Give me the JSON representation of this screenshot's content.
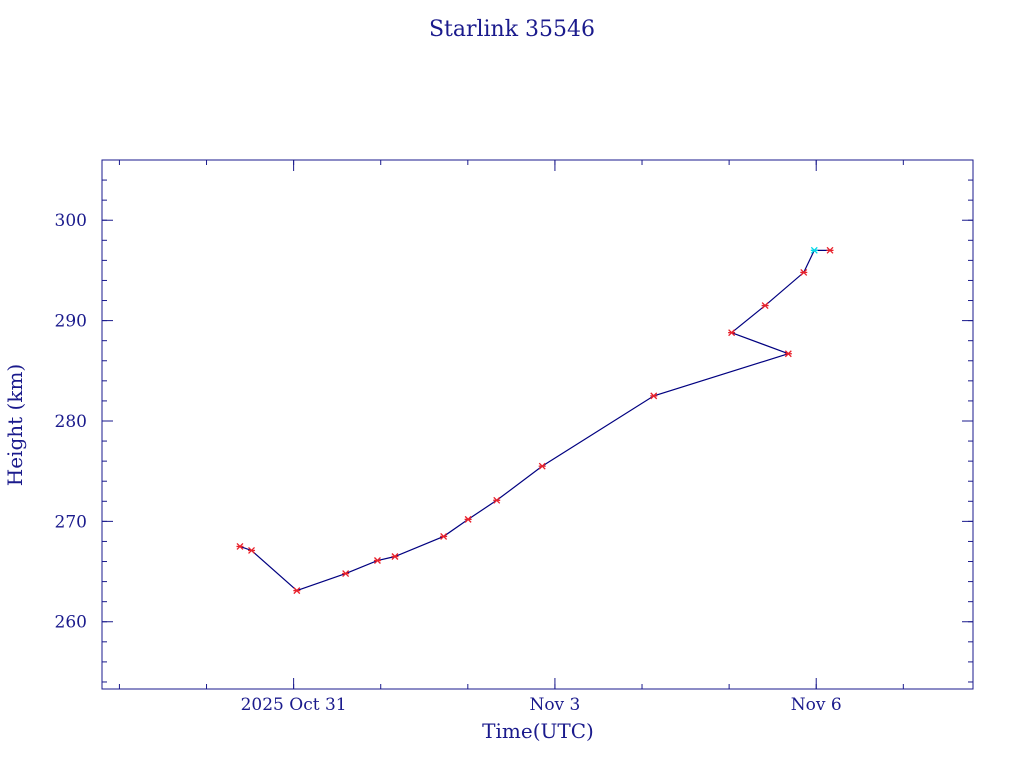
{
  "chart_data": {
    "type": "line",
    "title": "Starlink 35546",
    "xlabel": "Time(UTC)",
    "ylabel": "Height (km)",
    "x_ticks": [
      {
        "date": "2025-10-31",
        "label": "2025 Oct 31"
      },
      {
        "date": "2025-11-03",
        "label": "Nov  3"
      },
      {
        "date": "2025-11-06",
        "label": "Nov  6"
      }
    ],
    "xlim": [
      "2025-10-28T19:12:00",
      "2025-11-07T19:12:00"
    ],
    "ylim": [
      253.3,
      306.0
    ],
    "y_ticks": [
      260,
      270,
      280,
      290,
      300
    ],
    "grid": false,
    "colors": {
      "axes": "#1a1a8c",
      "line": "#000080",
      "marker": "#e8202a",
      "highlight_marker": "#00d8e8"
    },
    "series": [
      {
        "points": [
          {
            "x": "2025-10-30T09:13",
            "y": 267.5
          },
          {
            "x": "2025-10-30T12:24",
            "y": 267.1
          },
          {
            "x": "2025-10-31T00:53",
            "y": 263.1
          },
          {
            "x": "2025-10-31T14:20",
            "y": 264.8
          },
          {
            "x": "2025-10-31T23:06",
            "y": 266.1
          },
          {
            "x": "2025-11-01T03:55",
            "y": 266.5
          },
          {
            "x": "2025-11-01T17:20",
            "y": 268.5
          },
          {
            "x": "2025-11-02T00:05",
            "y": 270.2
          },
          {
            "x": "2025-11-02T07:58",
            "y": 272.1
          },
          {
            "x": "2025-11-02T20:30",
            "y": 275.5
          },
          {
            "x": "2025-11-04T03:14",
            "y": 282.5
          },
          {
            "x": "2025-11-05T16:19",
            "y": 286.7
          },
          {
            "x": "2025-11-05T00:41",
            "y": 288.8
          },
          {
            "x": "2025-11-05T09:55",
            "y": 291.5
          },
          {
            "x": "2025-11-05T20:34",
            "y": 294.8
          },
          {
            "x": "2025-11-05T23:28",
            "y": 297.0,
            "highlight": true
          },
          {
            "x": "2025-11-06T03:48",
            "y": 297.0
          }
        ]
      }
    ]
  }
}
